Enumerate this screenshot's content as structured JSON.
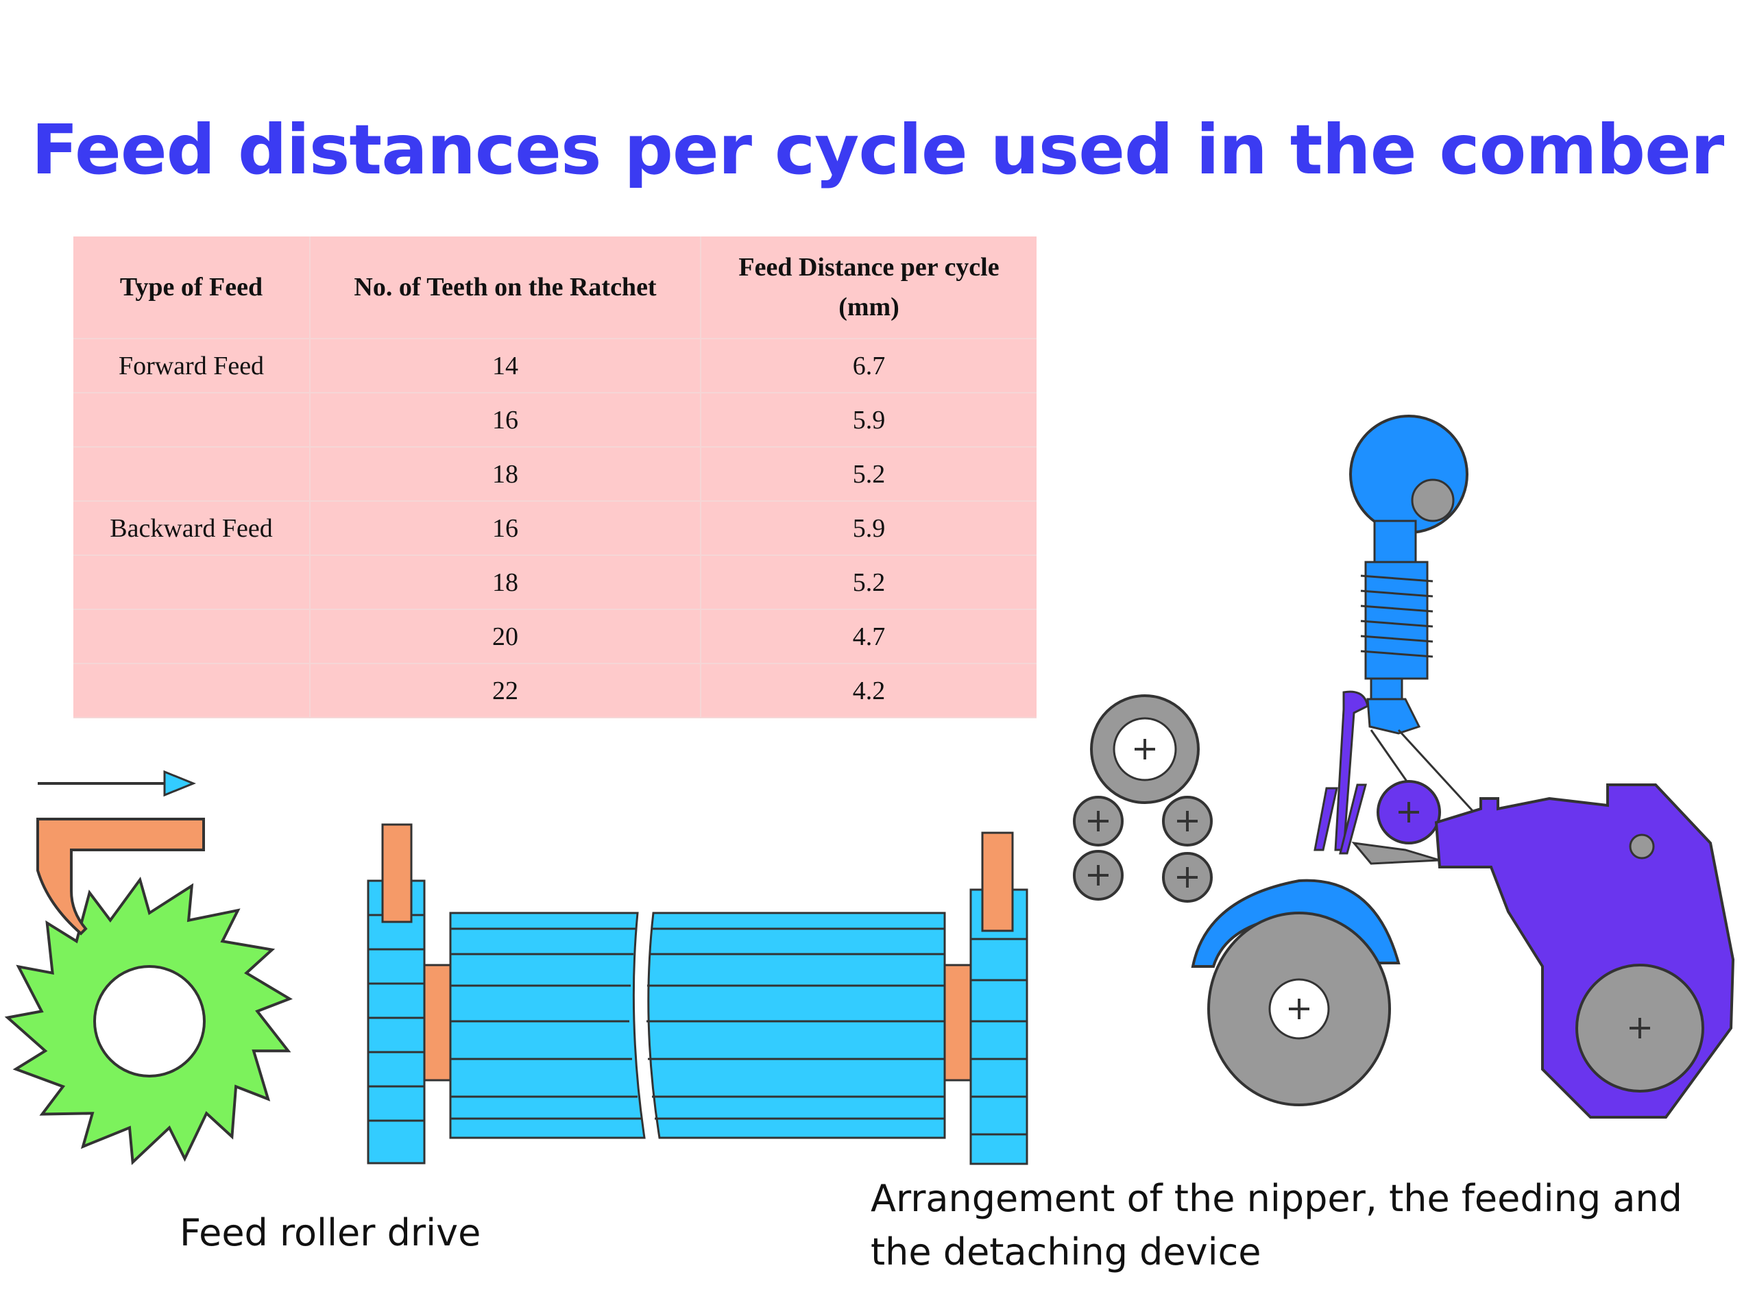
{
  "title": "Feed distances per cycle used in the comber",
  "table": {
    "headers": [
      "Type of Feed",
      "No. of Teeth on the Ratchet",
      "Feed Distance per cycle",
      "(mm)"
    ],
    "rows": [
      [
        "Forward Feed",
        "14",
        "6.7"
      ],
      [
        "",
        "16",
        "5.9"
      ],
      [
        "",
        "18",
        "5.2"
      ],
      [
        "Backward Feed",
        "16",
        "5.9"
      ],
      [
        "",
        "18",
        "5.2"
      ],
      [
        "",
        "20",
        "4.7"
      ],
      [
        "",
        "22",
        "4.2"
      ]
    ]
  },
  "captions": {
    "left": "Feed roller drive",
    "right_line1": "Arrangement of the nipper, the feeding and",
    "right_line2": "the detaching device"
  },
  "colors": {
    "title": "#3b3bf2",
    "table_bg": "#fecacb",
    "ratchet": "#7cf25c",
    "roller": "#33ccff",
    "pawl": "#f59a68",
    "nipper": "#6a35ee",
    "top_arm": "#1e90ff",
    "gray": "#999999"
  },
  "icons": [
    "ratchet-wheel-icon",
    "feed-roller-icon",
    "direction-arrow-icon",
    "comber-mechanism-icon"
  ]
}
